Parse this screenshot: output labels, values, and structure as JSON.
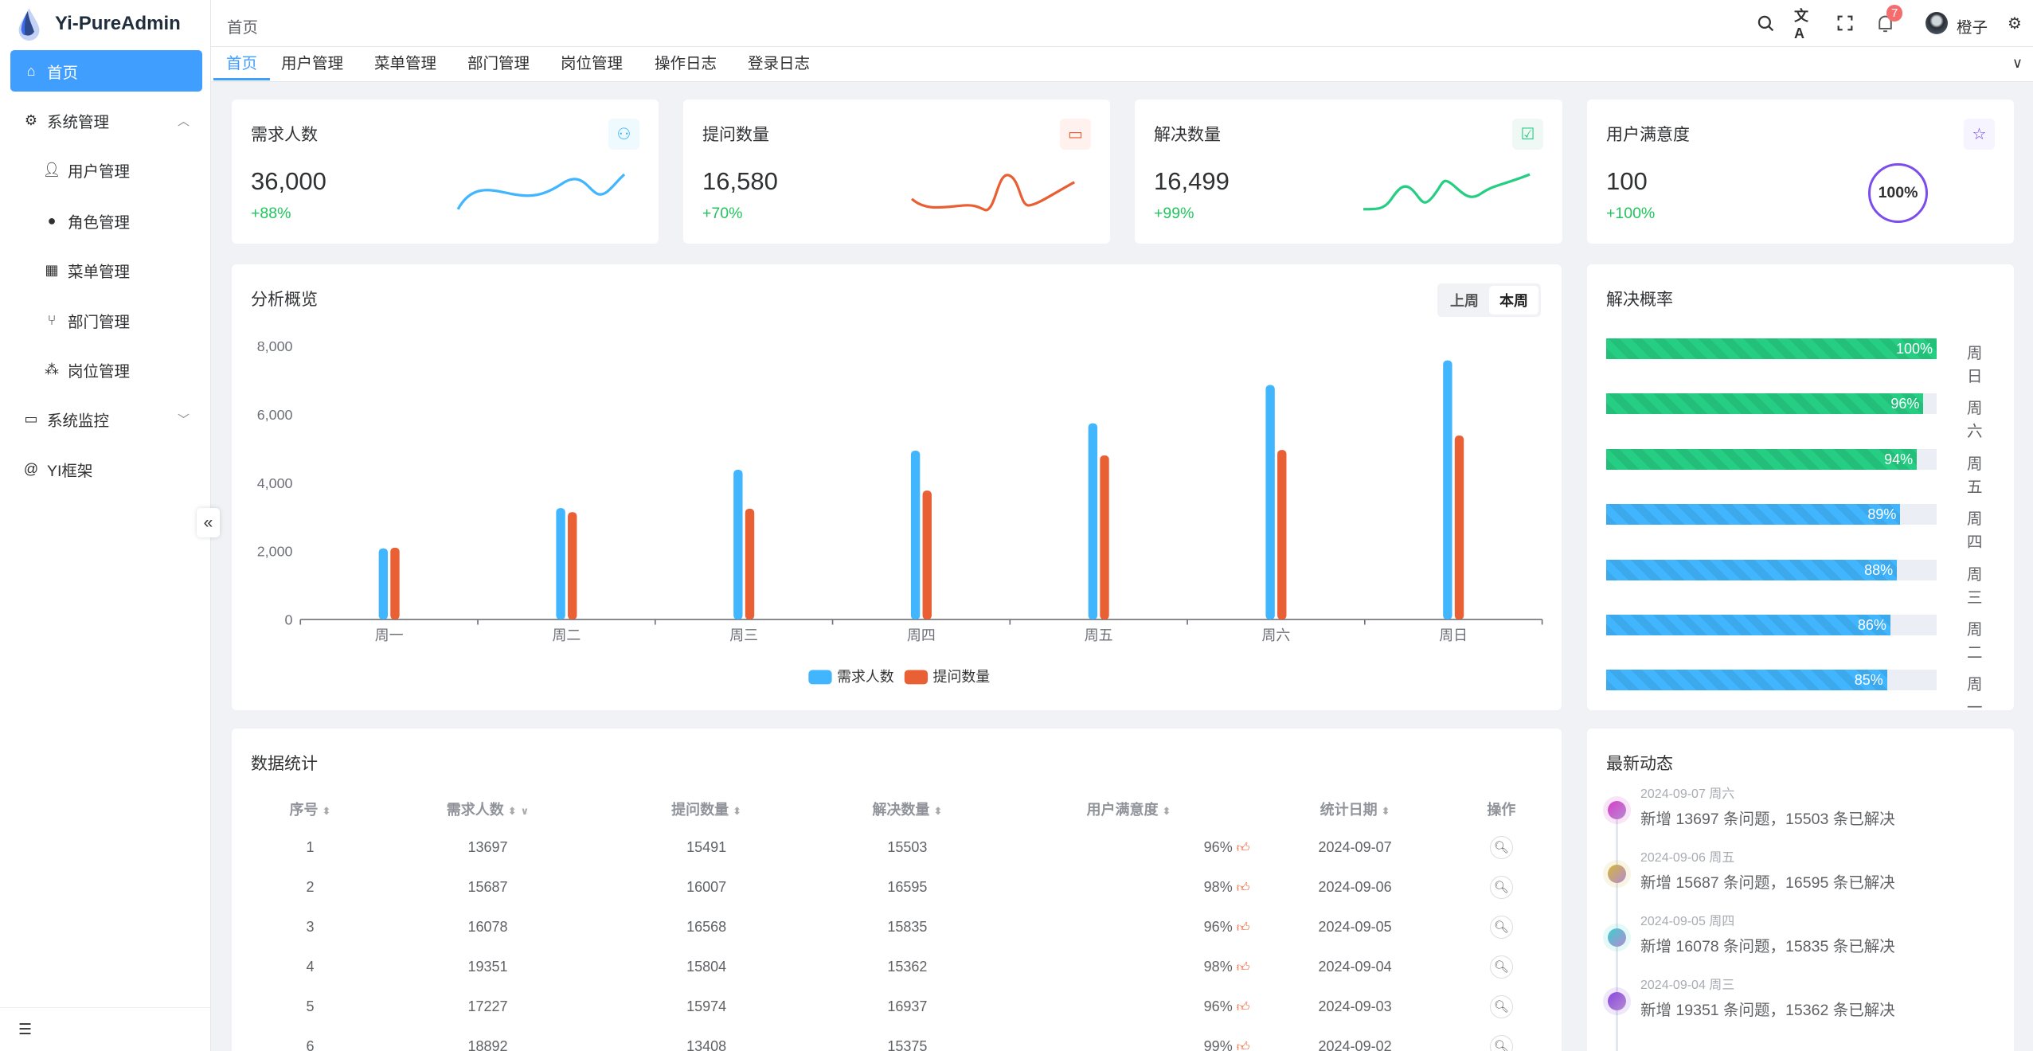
{
  "app": {
    "title": "Yi-PureAdmin"
  },
  "sidebar": {
    "items": [
      {
        "label": "首页",
        "icon": "home-icon",
        "active": true
      },
      {
        "label": "系统管理",
        "icon": "gear-icon",
        "expanded": true
      },
      {
        "label": "用户管理",
        "icon": "user-icon"
      },
      {
        "label": "角色管理",
        "icon": "role-icon"
      },
      {
        "label": "菜单管理",
        "icon": "grid-icon"
      },
      {
        "label": "部门管理",
        "icon": "branch-icon"
      },
      {
        "label": "岗位管理",
        "icon": "nodes-icon"
      },
      {
        "label": "系统监控",
        "icon": "monitor-icon"
      },
      {
        "label": "YI框架",
        "icon": "at-icon"
      }
    ]
  },
  "header": {
    "breadcrumb": "首页",
    "notifications": "7",
    "user": "橙子"
  },
  "tabs": [
    "首页",
    "用户管理",
    "菜单管理",
    "部门管理",
    "岗位管理",
    "操作日志",
    "登录日志"
  ],
  "stats": [
    {
      "title": "需求人数",
      "value": "36,000",
      "pct": "+88%",
      "color": "#41b6ff",
      "icon": "users-icon"
    },
    {
      "title": "提问数量",
      "value": "16,580",
      "pct": "+70%",
      "color": "#e85f33",
      "icon": "message-icon"
    },
    {
      "title": "解决数量",
      "value": "16,499",
      "pct": "+99%",
      "color": "#26ce83",
      "icon": "check-message-icon"
    },
    {
      "title": "用户满意度",
      "value": "100",
      "pct": "+100%",
      "color": "#7846e5",
      "icon": "star-icon",
      "ring": "100%"
    }
  ],
  "overview": {
    "title": "分析概览",
    "toggle": [
      "上周",
      "本周"
    ],
    "selected": "本周"
  },
  "chart_data": {
    "type": "bar",
    "categories": [
      "周一",
      "周二",
      "周三",
      "周四",
      "周五",
      "周六",
      "周日"
    ],
    "series": [
      {
        "name": "需求人数",
        "color": "#41b6ff",
        "values": [
          2080,
          3260,
          4380,
          4940,
          5740,
          6860,
          7580
        ]
      },
      {
        "name": "提问数量",
        "color": "#e86033",
        "values": [
          2100,
          3140,
          3240,
          3770,
          4800,
          4960,
          5380
        ]
      }
    ],
    "yticks": [
      "0",
      "2,000",
      "4,000",
      "6,000",
      "8,000"
    ],
    "ylim": [
      0,
      8000
    ],
    "legend": "bottom"
  },
  "rate": {
    "title": "解决概率",
    "items": [
      {
        "day": "周日",
        "pct": 100,
        "label": "100%",
        "color": "#26ce83"
      },
      {
        "day": "周六",
        "pct": 96,
        "label": "96%",
        "color": "#26ce83"
      },
      {
        "day": "周五",
        "pct": 94,
        "label": "94%",
        "color": "#26ce83"
      },
      {
        "day": "周四",
        "pct": 89,
        "label": "89%",
        "color": "#41b6ff"
      },
      {
        "day": "周三",
        "pct": 88,
        "label": "88%",
        "color": "#41b6ff"
      },
      {
        "day": "周二",
        "pct": 86,
        "label": "86%",
        "color": "#41b6ff"
      },
      {
        "day": "周一",
        "pct": 85,
        "label": "85%",
        "color": "#41b6ff"
      }
    ]
  },
  "table": {
    "title": "数据统计",
    "headers": [
      "序号",
      "需求人数",
      "提问数量",
      "解决数量",
      "用户满意度",
      "统计日期",
      "操作"
    ],
    "rows": [
      [
        "1",
        "13697",
        "15491",
        "15503",
        "96%",
        "2024-09-07"
      ],
      [
        "2",
        "15687",
        "16007",
        "16595",
        "98%",
        "2024-09-06"
      ],
      [
        "3",
        "16078",
        "16568",
        "15835",
        "96%",
        "2024-09-05"
      ],
      [
        "4",
        "19351",
        "15804",
        "15362",
        "98%",
        "2024-09-04"
      ],
      [
        "5",
        "17227",
        "15974",
        "16937",
        "96%",
        "2024-09-03"
      ],
      [
        "6",
        "18892",
        "13408",
        "15375",
        "99%",
        "2024-09-02"
      ]
    ]
  },
  "timeline": {
    "title": "最新动态",
    "items": [
      {
        "date": "2024-09-07 周六",
        "text": "新增 13697 条问题，15503 条已解决",
        "color": "#d93ec9"
      },
      {
        "date": "2024-09-06 周五",
        "text": "新增 15687 条问题，16595 条已解决",
        "color": "#d4b63a"
      },
      {
        "date": "2024-09-05 周四",
        "text": "新增 16078 条问题，15835 条已解决",
        "color": "#3ccfcf"
      },
      {
        "date": "2024-09-04 周三",
        "text": "新增 19351 条问题，15362 条已解决",
        "color": "#8a48e0"
      }
    ]
  }
}
